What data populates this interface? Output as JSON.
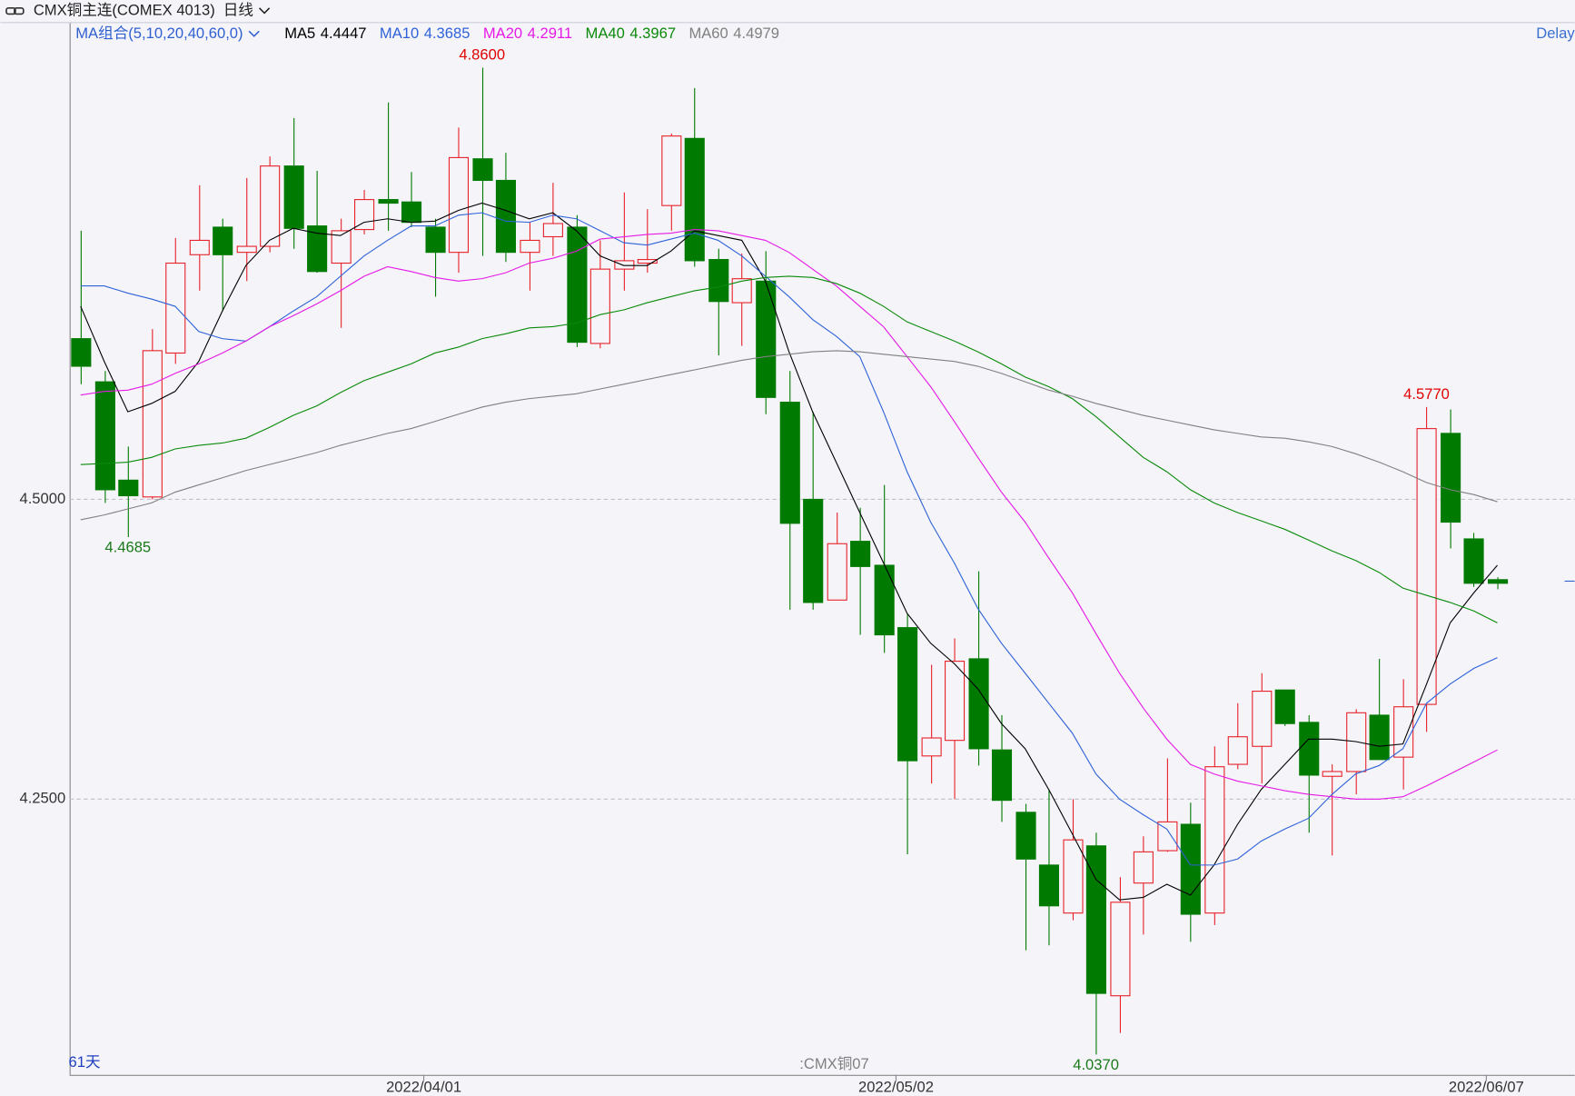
{
  "chart_data": {
    "type": "candlestick",
    "title": "CMX铜主连(COMEX 4013)",
    "period": "日线",
    "indicator_label": "MA组合(5,10,20,40,60,0)",
    "status": "Delay",
    "bar_count_label": "61天",
    "watermark": ":CMX铜07",
    "categories": [
      null,
      null,
      null,
      null,
      null,
      null,
      null,
      null,
      null,
      null,
      null,
      null,
      null,
      null,
      null,
      "2022/04/01",
      null,
      null,
      null,
      null,
      null,
      null,
      null,
      null,
      null,
      null,
      null,
      null,
      null,
      null,
      null,
      null,
      null,
      null,
      null,
      "2022/05/02",
      null,
      null,
      null,
      null,
      null,
      null,
      null,
      null,
      null,
      null,
      null,
      null,
      null,
      null,
      null,
      null,
      null,
      null,
      null,
      null,
      null,
      null,
      null,
      null,
      "2022/06/07"
    ],
    "open": [
      4.634,
      4.598,
      4.516,
      4.502,
      4.622,
      4.704,
      4.727,
      4.706,
      4.711,
      4.778,
      4.728,
      4.697,
      4.725,
      4.75,
      4.748,
      4.727,
      4.706,
      4.784,
      4.766,
      4.706,
      4.719,
      4.727,
      4.63,
      4.692,
      4.697,
      4.745,
      4.801,
      4.7,
      4.664,
      4.682,
      4.581,
      4.5,
      4.416,
      4.465,
      4.445,
      4.393,
      4.286,
      4.299,
      4.367,
      4.291,
      4.239,
      4.195,
      4.155,
      4.211,
      4.086,
      4.18,
      4.207,
      4.229,
      4.155,
      4.279,
      4.294,
      4.341,
      4.314,
      4.269,
      4.273,
      4.32,
      4.285,
      4.329,
      4.555,
      4.467,
      4.433
    ],
    "high": [
      4.724,
      4.607,
      4.544,
      4.642,
      4.718,
      4.762,
      4.734,
      4.768,
      4.786,
      4.818,
      4.774,
      4.734,
      4.758,
      4.831,
      4.773,
      4.734,
      4.81,
      4.86,
      4.789,
      4.731,
      4.764,
      4.737,
      4.716,
      4.756,
      4.742,
      4.805,
      4.843,
      4.709,
      4.705,
      4.707,
      4.607,
      4.573,
      4.489,
      4.493,
      4.512,
      4.404,
      4.362,
      4.384,
      4.44,
      4.32,
      4.246,
      4.258,
      4.25,
      4.222,
      4.185,
      4.219,
      4.284,
      4.247,
      4.294,
      4.33,
      4.355,
      4.341,
      4.32,
      4.279,
      4.325,
      4.367,
      4.35,
      4.577,
      4.575,
      4.472,
      4.435
    ],
    "low": [
      4.596,
      4.497,
      4.4685,
      4.5,
      4.613,
      4.674,
      4.657,
      4.682,
      4.706,
      4.709,
      4.689,
      4.643,
      4.721,
      4.724,
      4.727,
      4.669,
      4.689,
      4.703,
      4.698,
      4.674,
      4.703,
      4.627,
      4.626,
      4.674,
      4.689,
      4.724,
      4.694,
      4.62,
      4.628,
      4.571,
      4.408,
      4.408,
      4.416,
      4.387,
      4.372,
      4.204,
      4.263,
      4.25,
      4.278,
      4.231,
      4.124,
      4.128,
      4.149,
      4.037,
      4.055,
      4.137,
      4.206,
      4.131,
      4.145,
      4.275,
      4.263,
      4.311,
      4.222,
      4.203,
      4.254,
      4.283,
      4.258,
      4.306,
      4.459,
      4.427,
      4.425
    ],
    "close": [
      4.611,
      4.508,
      4.503,
      4.624,
      4.697,
      4.716,
      4.704,
      4.711,
      4.778,
      4.726,
      4.69,
      4.724,
      4.75,
      4.747,
      4.731,
      4.706,
      4.785,
      4.766,
      4.706,
      4.716,
      4.73,
      4.631,
      4.692,
      4.699,
      4.7,
      4.803,
      4.699,
      4.665,
      4.684,
      4.585,
      4.48,
      4.414,
      4.463,
      4.444,
      4.387,
      4.282,
      4.301,
      4.365,
      4.292,
      4.249,
      4.2,
      4.161,
      4.216,
      4.088,
      4.164,
      4.206,
      4.231,
      4.154,
      4.277,
      4.302,
      4.34,
      4.313,
      4.27,
      4.273,
      4.322,
      4.283,
      4.327,
      4.559,
      4.481,
      4.43,
      4.43
    ],
    "up_color": "#e8222a",
    "down_color": "#007a00",
    "series": [
      {
        "name": "MA5",
        "color": "#000000",
        "legend_value": 4.4447,
        "values": [
          4.661,
          4.615,
          4.573,
          4.58,
          4.59,
          4.615,
          4.657,
          4.695,
          4.716,
          4.726,
          4.722,
          4.72,
          4.731,
          4.734,
          4.731,
          4.732,
          4.741,
          4.747,
          4.741,
          4.734,
          4.739,
          4.724,
          4.703,
          4.695,
          4.695,
          4.707,
          4.724,
          4.72,
          4.716,
          4.682,
          4.623,
          4.573,
          4.531,
          4.489,
          4.447,
          4.405,
          4.38,
          4.363,
          4.342,
          4.313,
          4.292,
          4.258,
          4.221,
          4.183,
          4.166,
          4.168,
          4.179,
          4.17,
          4.195,
          4.229,
          4.258,
          4.279,
          4.3,
          4.3,
          4.298,
          4.294,
          4.296,
          4.346,
          4.397,
          4.422,
          4.445
        ]
      },
      {
        "name": "MA10",
        "color": "#2f62d8",
        "legend_value": 4.3685,
        "values": [
          4.678,
          4.678,
          4.672,
          4.667,
          4.661,
          4.64,
          4.634,
          4.632,
          4.644,
          4.657,
          4.669,
          4.686,
          4.703,
          4.716,
          4.728,
          4.728,
          4.737,
          4.739,
          4.732,
          4.731,
          4.737,
          4.734,
          4.724,
          4.714,
          4.712,
          4.717,
          4.722,
          4.716,
          4.703,
          4.686,
          4.669,
          4.65,
          4.636,
          4.619,
          4.573,
          4.523,
          4.481,
          4.447,
          4.409,
          4.38,
          4.355,
          4.33,
          4.305,
          4.271,
          4.25,
          4.237,
          4.225,
          4.195,
          4.195,
          4.2,
          4.215,
          4.225,
          4.234,
          4.254,
          4.271,
          4.278,
          4.292,
          4.33,
          4.346,
          4.359,
          4.368
        ]
      },
      {
        "name": "MA20",
        "color": "#e619e6",
        "legend_value": 4.2911,
        "values": [
          4.587,
          4.59,
          4.591,
          4.596,
          4.605,
          4.613,
          4.622,
          4.632,
          4.644,
          4.653,
          4.663,
          4.674,
          4.686,
          4.694,
          4.69,
          4.685,
          4.682,
          4.684,
          4.689,
          4.697,
          4.701,
          4.707,
          4.717,
          4.719,
          4.721,
          4.722,
          4.725,
          4.724,
          4.72,
          4.716,
          4.706,
          4.692,
          4.678,
          4.661,
          4.644,
          4.619,
          4.594,
          4.565,
          4.535,
          4.506,
          4.481,
          4.451,
          4.422,
          4.388,
          4.355,
          4.326,
          4.3,
          4.279,
          4.271,
          4.265,
          4.261,
          4.257,
          4.254,
          4.252,
          4.25,
          4.25,
          4.252,
          4.261,
          4.271,
          4.281,
          4.291
        ]
      },
      {
        "name": "MA40",
        "color": "#0a8a0a",
        "legend_value": 4.3967,
        "values": [
          4.529,
          4.53,
          4.531,
          4.535,
          4.542,
          4.545,
          4.547,
          4.551,
          4.56,
          4.57,
          4.578,
          4.589,
          4.599,
          4.606,
          4.613,
          4.622,
          4.627,
          4.634,
          4.638,
          4.643,
          4.644,
          4.647,
          4.654,
          4.658,
          4.664,
          4.669,
          4.674,
          4.677,
          4.682,
          4.685,
          4.686,
          4.685,
          4.68,
          4.672,
          4.661,
          4.648,
          4.64,
          4.632,
          4.623,
          4.613,
          4.602,
          4.594,
          4.584,
          4.569,
          4.552,
          4.535,
          4.523,
          4.508,
          4.497,
          4.489,
          4.482,
          4.475,
          4.466,
          4.457,
          4.449,
          4.439,
          4.426,
          4.42,
          4.414,
          4.407,
          4.397
        ]
      },
      {
        "name": "MA60",
        "color": "#808080",
        "legend_value": 4.4979,
        "values": [
          4.483,
          4.487,
          4.492,
          4.497,
          4.506,
          4.512,
          4.518,
          4.524,
          4.529,
          4.534,
          4.539,
          4.545,
          4.55,
          4.555,
          4.559,
          4.565,
          4.571,
          4.577,
          4.581,
          4.584,
          4.586,
          4.588,
          4.592,
          4.596,
          4.6,
          4.604,
          4.608,
          4.612,
          4.616,
          4.619,
          4.621,
          4.623,
          4.624,
          4.623,
          4.621,
          4.619,
          4.617,
          4.615,
          4.611,
          4.605,
          4.598,
          4.591,
          4.586,
          4.58,
          4.575,
          4.57,
          4.566,
          4.562,
          4.558,
          4.555,
          4.552,
          4.551,
          4.548,
          4.544,
          4.538,
          4.531,
          4.523,
          4.514,
          4.508,
          4.504,
          4.498
        ]
      }
    ],
    "annotations": [
      {
        "value": 4.86,
        "label": "4.8600",
        "color": "#e00000"
      },
      {
        "value": 4.4685,
        "label": "4.4685",
        "color": "#1a7a1a"
      },
      {
        "value": 4.577,
        "label": "4.5770",
        "color": "#e00000"
      },
      {
        "value": 4.037,
        "label": "4.0370",
        "color": "#1a7a1a"
      }
    ],
    "ylim": [
      4.02,
      4.898
    ],
    "yticks": [
      {
        "value": 4.25,
        "label": "4.2500"
      },
      {
        "value": 4.5,
        "label": "4.5000"
      }
    ],
    "grid": true
  }
}
